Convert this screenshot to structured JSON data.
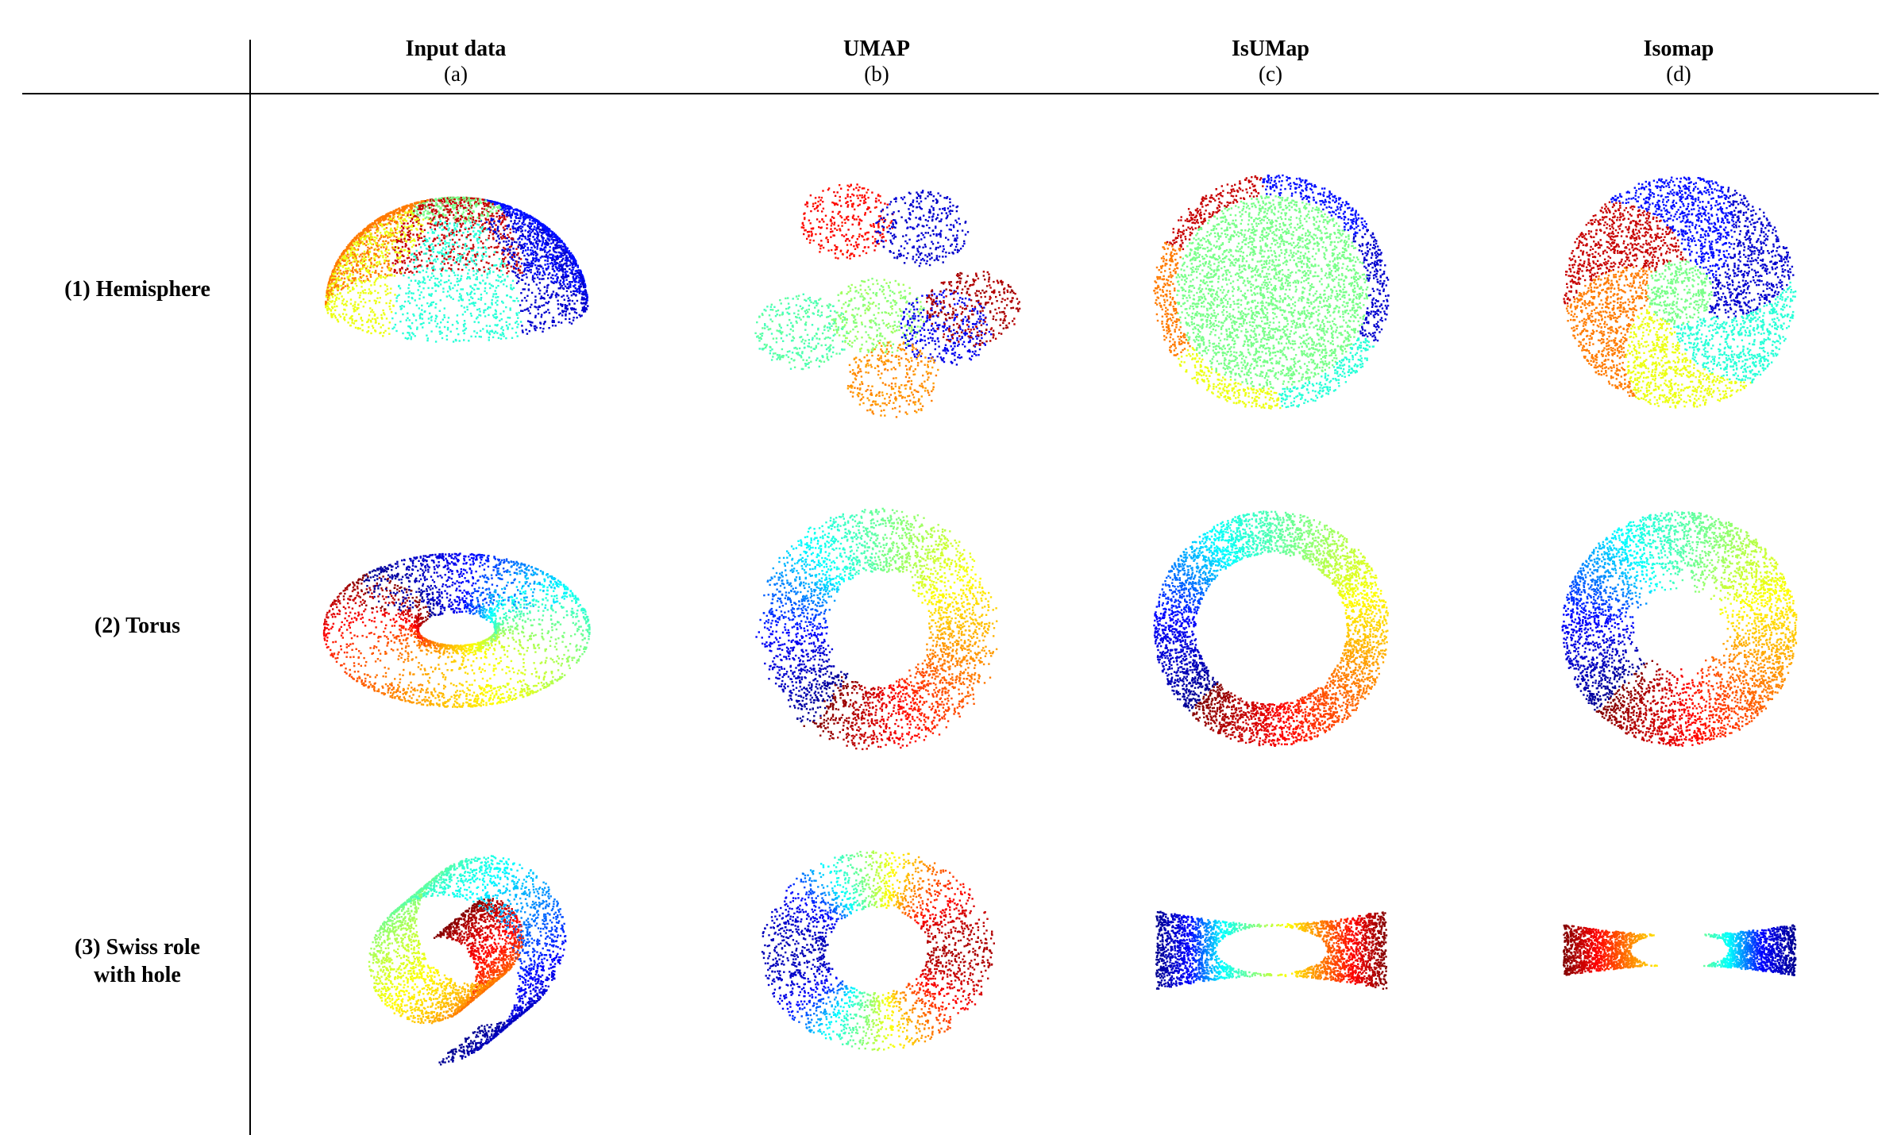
{
  "columns": [
    {
      "title": "Input data",
      "sub": "(a)"
    },
    {
      "title": "UMAP",
      "sub": "(b)"
    },
    {
      "title": "IsUMap",
      "sub": "(c)"
    },
    {
      "title": "Isomap",
      "sub": "(d)"
    }
  ],
  "rows": [
    {
      "label": "(1) Hemisphere",
      "label2": ""
    },
    {
      "label": "(2) Torus",
      "label2": ""
    },
    {
      "label": "(3) Swiss role",
      "label2": "with hole"
    }
  ],
  "colormap": [
    "#00008f",
    "#0000ff",
    "#00ffff",
    "#80ff80",
    "#ffff00",
    "#ff8000",
    "#ff0000",
    "#800000"
  ],
  "panels": [
    {
      "row": 0,
      "col": 0,
      "type": "hemisphere-3d"
    },
    {
      "row": 0,
      "col": 1,
      "type": "umap-hemisphere"
    },
    {
      "row": 0,
      "col": 2,
      "type": "isumap-hemisphere"
    },
    {
      "row": 0,
      "col": 3,
      "type": "isomap-hemisphere"
    },
    {
      "row": 1,
      "col": 0,
      "type": "torus-3d"
    },
    {
      "row": 1,
      "col": 1,
      "type": "umap-torus"
    },
    {
      "row": 1,
      "col": 2,
      "type": "isumap-torus"
    },
    {
      "row": 1,
      "col": 3,
      "type": "isomap-torus"
    },
    {
      "row": 2,
      "col": 0,
      "type": "swiss-roll-3d"
    },
    {
      "row": 2,
      "col": 1,
      "type": "umap-swiss"
    },
    {
      "row": 2,
      "col": 2,
      "type": "isumap-swiss"
    },
    {
      "row": 2,
      "col": 3,
      "type": "isomap-swiss"
    }
  ]
}
